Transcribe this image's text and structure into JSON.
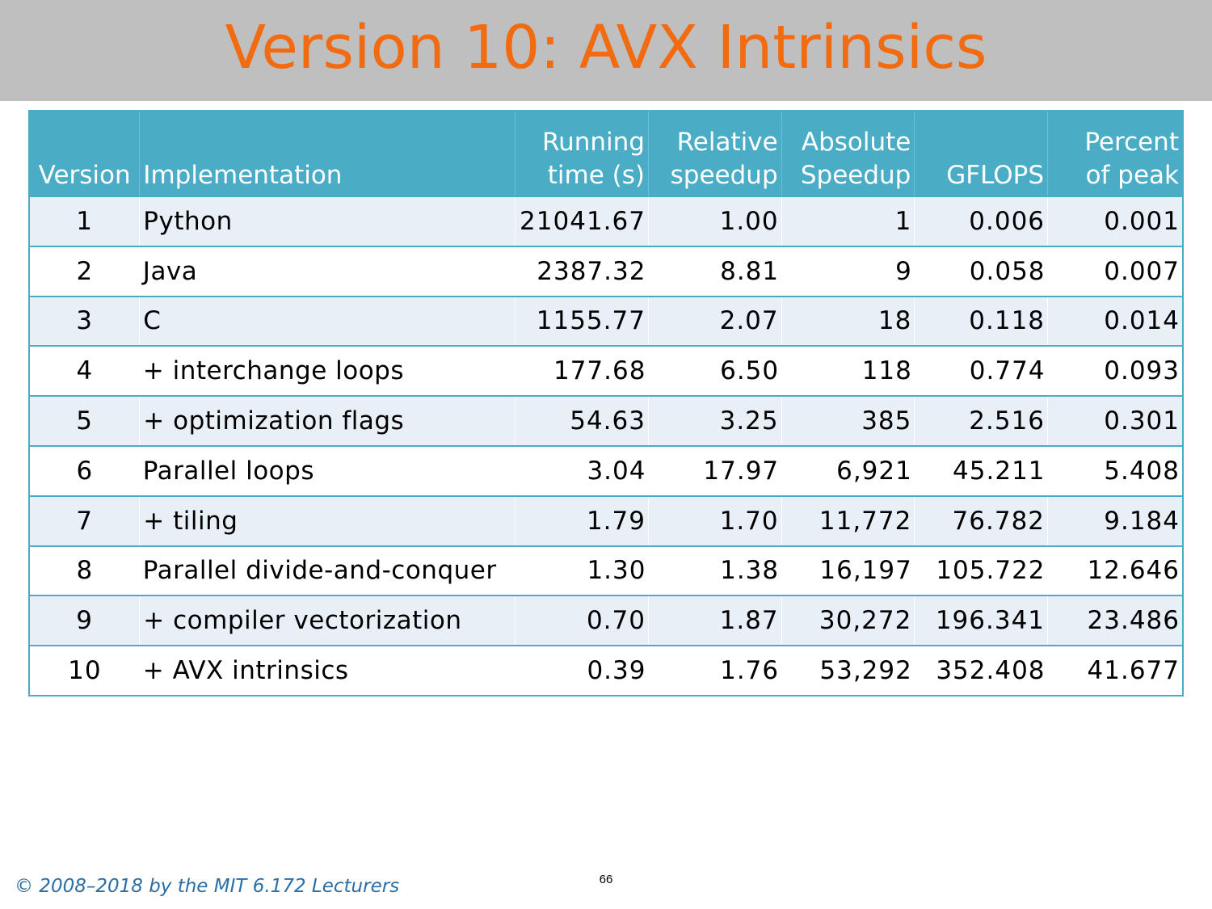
{
  "slide": {
    "title": "Version 10: AVX Intrinsics",
    "page_number": "66",
    "copyright": "© 2008–2018 by the MIT 6.172 Lecturers"
  },
  "table": {
    "headers": [
      [
        "",
        "Version"
      ],
      [
        "",
        "Implementation"
      ],
      [
        "Running",
        "time (s)"
      ],
      [
        "Relative",
        "speedup"
      ],
      [
        "Absolute",
        "Speedup"
      ],
      [
        "",
        "GFLOPS"
      ],
      [
        "Percent",
        "of peak"
      ]
    ],
    "rows": [
      [
        "1",
        "Python",
        "21041.67",
        "1.00",
        "1",
        "0.006",
        "0.001"
      ],
      [
        "2",
        "Java",
        "2387.32",
        "8.81",
        "9",
        "0.058",
        "0.007"
      ],
      [
        "3",
        "C",
        "1155.77",
        "2.07",
        "18",
        "0.118",
        "0.014"
      ],
      [
        "4",
        "+ interchange loops",
        "177.68",
        "6.50",
        "118",
        "0.774",
        "0.093"
      ],
      [
        "5",
        "+ optimization flags",
        "54.63",
        "3.25",
        "385",
        "2.516",
        "0.301"
      ],
      [
        "6",
        "Parallel loops",
        "3.04",
        "17.97",
        "6,921",
        "45.211",
        "5.408"
      ],
      [
        "7",
        "+ tiling",
        "1.79",
        "1.70",
        "11,772",
        "76.782",
        "9.184"
      ],
      [
        "8",
        "Parallel divide-and-conquer",
        "1.30",
        "1.38",
        "16,197",
        "105.722",
        "12.646"
      ],
      [
        "9",
        "+ compiler vectorization",
        "0.70",
        "1.87",
        "30,272",
        "196.341",
        "23.486"
      ],
      [
        "10",
        "+ AVX intrinsics",
        "0.39",
        "1.76",
        "53,292",
        "352.408",
        "41.677"
      ]
    ]
  }
}
